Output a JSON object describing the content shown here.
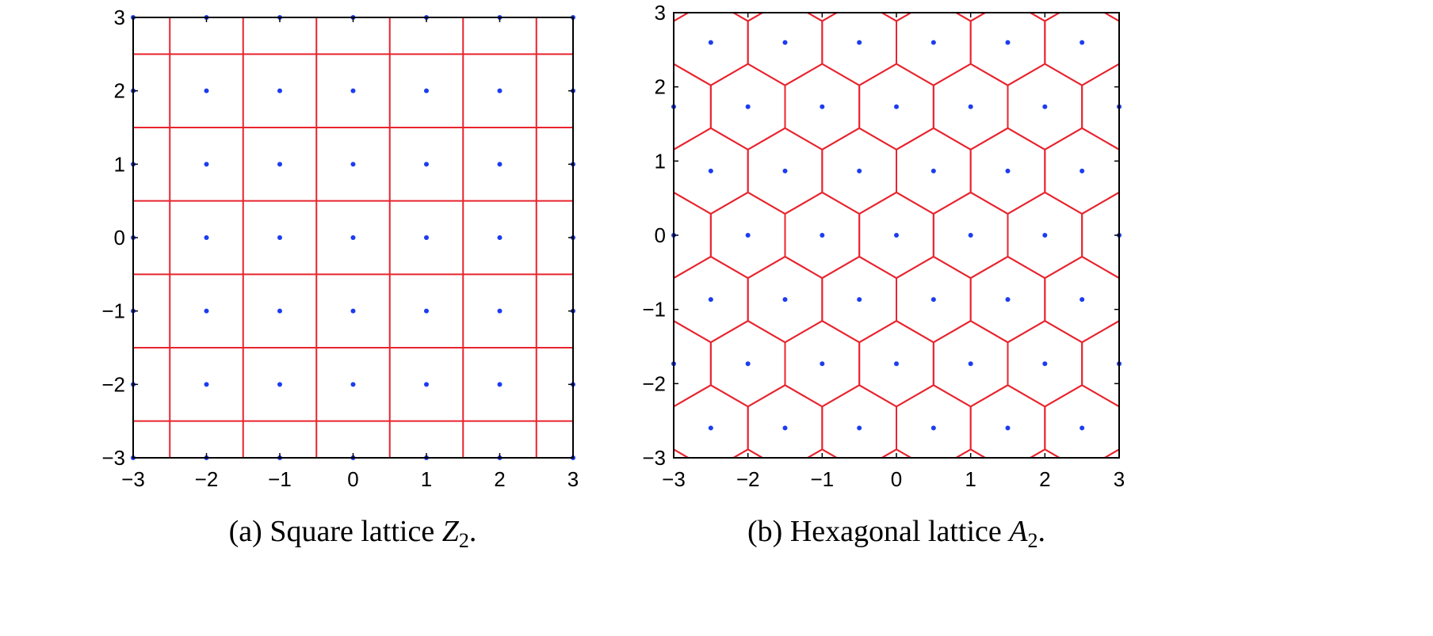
{
  "chart_data": [
    {
      "type": "scatter",
      "lattice": "square",
      "caption_prefix": "(a) Square lattice ",
      "caption_symbol": "Z",
      "caption_sub": "2",
      "caption_suffix": ".",
      "xlim": [
        -3,
        3
      ],
      "ylim": [
        -3,
        3
      ],
      "xticks": [
        "−3",
        "−2",
        "−1",
        "0",
        "1",
        "2",
        "3"
      ],
      "yticks": [
        "−3",
        "−2",
        "−1",
        "0",
        "1",
        "2",
        "3"
      ],
      "points": "all integer points (m, n) with -3 ≤ m ≤ 3, -3 ≤ n ≤ 3",
      "cell_boundaries_x": [
        -2.5,
        -1.5,
        -0.5,
        0.5,
        1.5,
        2.5
      ],
      "cell_boundaries_y": [
        -2.5,
        -1.5,
        -0.5,
        0.5,
        1.5,
        2.5
      ],
      "point_color": "#1d3cf0",
      "cell_color": "#e8242e"
    },
    {
      "type": "scatter",
      "lattice": "hexagonal",
      "caption_prefix": "(b) Hexagonal lattice ",
      "caption_symbol": "A",
      "caption_sub": "2",
      "caption_suffix": ".",
      "xlim": [
        -3,
        3
      ],
      "ylim": [
        -3,
        3
      ],
      "xticks": [
        "−3",
        "−2",
        "−1",
        "0",
        "1",
        "2",
        "3"
      ],
      "yticks": [
        "−3",
        "−2",
        "−1",
        "0",
        "1",
        "2",
        "3"
      ],
      "points": "points a·(1,0) + b·(0.5, 0.866) within [-3,3]×[-3,3]",
      "basis": [
        [
          1,
          0
        ],
        [
          0.5,
          0.8660254
        ]
      ],
      "point_color": "#1d3cf0",
      "cell_color": "#e8242e"
    }
  ]
}
